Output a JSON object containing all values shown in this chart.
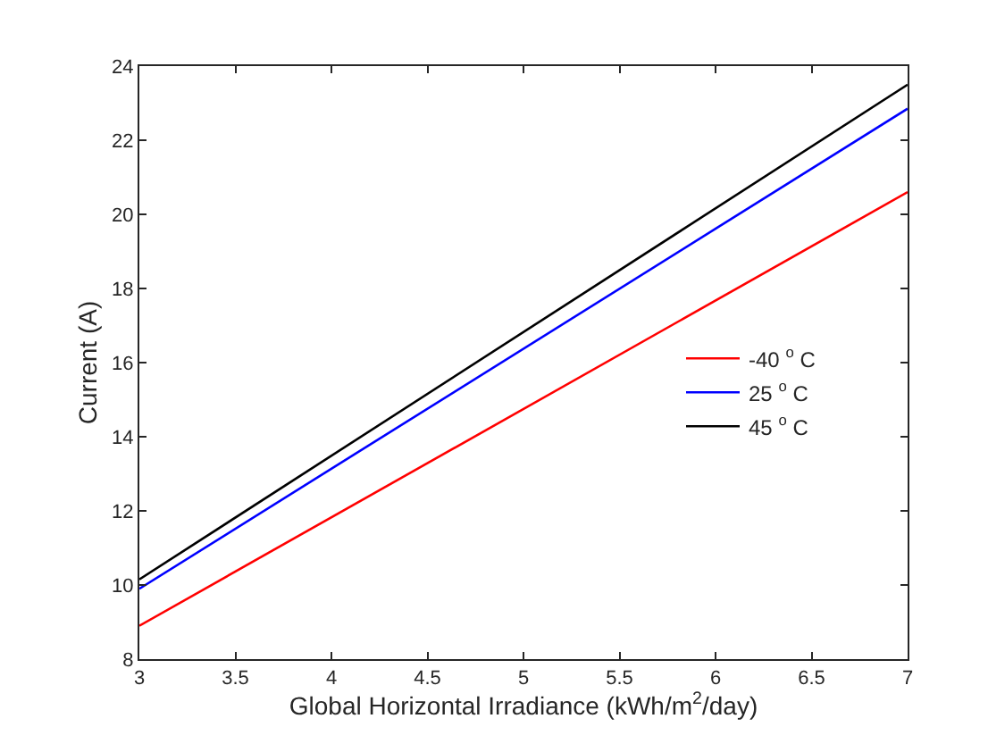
{
  "chart_data": {
    "type": "line",
    "xlabel": "Global Horizontal Irradiance (kWh/m$^{2}$/day)",
    "ylabel": "Current (A)",
    "x": [
      3,
      7
    ],
    "series": [
      {
        "name": "-40 $^{o}$ C",
        "color": "#ff0000",
        "values": [
          8.9,
          20.6
        ]
      },
      {
        "name": "25 $^{o}$ C",
        "color": "#0000ff",
        "values": [
          9.9,
          22.85
        ]
      },
      {
        "name": "45 $^{o}$ C",
        "color": "#000000",
        "values": [
          10.15,
          23.5
        ]
      }
    ],
    "xlim": [
      3,
      7
    ],
    "xticks": [
      3,
      3.5,
      4,
      4.5,
      5,
      5.5,
      6,
      6.5,
      7
    ],
    "ylim": [
      8,
      24
    ],
    "yticks": [
      8,
      10,
      12,
      14,
      16,
      18,
      20,
      22,
      24
    ],
    "legend": "right",
    "marker": "none",
    "line_style": "solid"
  }
}
